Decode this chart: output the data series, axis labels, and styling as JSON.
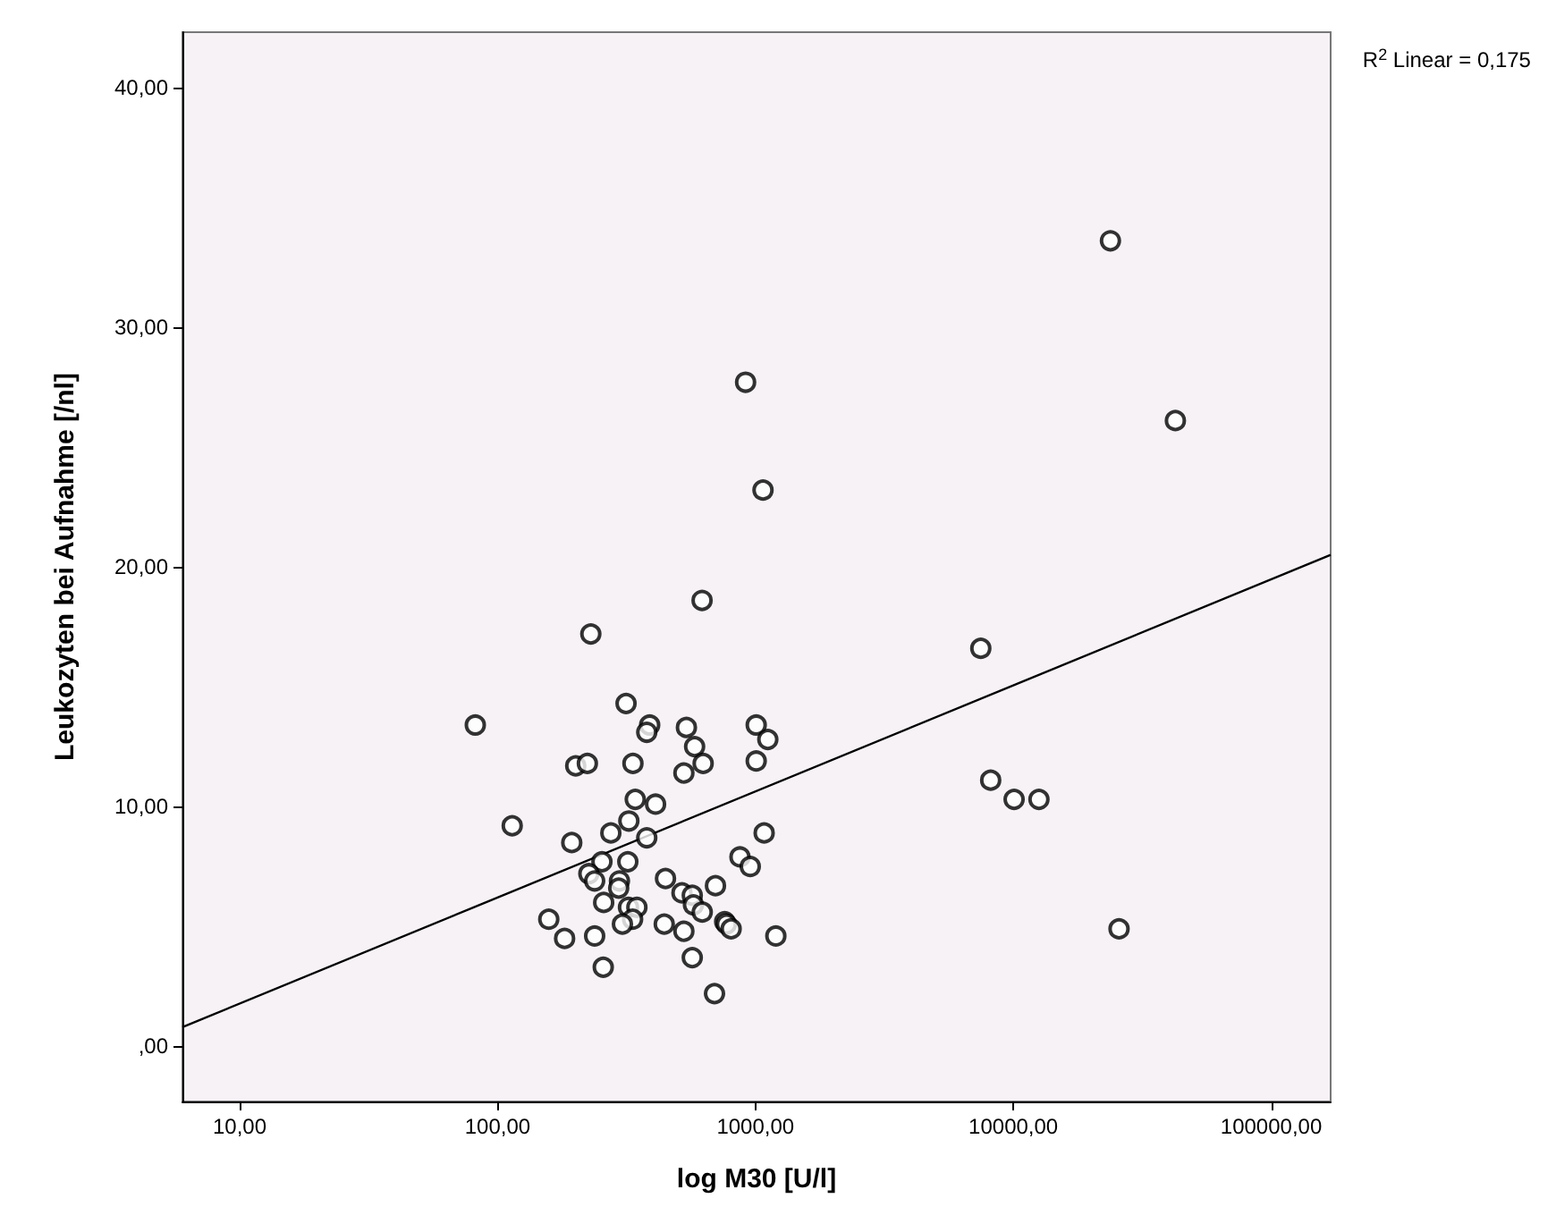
{
  "chart_data": {
    "type": "scatter",
    "xlabel": "log M30 [U/l]",
    "ylabel": "Leukozyten bei Aufnahme [/nl]",
    "annotations": [
      "R$^{2}$ Linear = 0,175"
    ],
    "log": "x",
    "grid": false,
    "marker": "circle",
    "xlim": [
      6,
      170000
    ],
    "ylim": [
      -2.3,
      42.3
    ],
    "xticks": [
      {
        "value": 10,
        "label": "10,00"
      },
      {
        "value": 100,
        "label": "100,00"
      },
      {
        "value": 1000,
        "label": "1000,00"
      },
      {
        "value": 10000,
        "label": "10000,00"
      },
      {
        "value": 100000,
        "label": "100000,00"
      }
    ],
    "yticks": [
      {
        "value": 0,
        "label": ",00"
      },
      {
        "value": 10,
        "label": "10,00"
      },
      {
        "value": 20,
        "label": "20,00"
      },
      {
        "value": 30,
        "label": "30,00"
      },
      {
        "value": 40,
        "label": "40,00"
      }
    ],
    "series": [
      {
        "color": "#000000",
        "x": [
          621,
          230,
          82,
          315,
          389,
          379,
          540,
          1007,
          1117,
          581,
          201,
          223,
          335,
          627,
          528,
          1007,
          342,
          410,
          114,
          323,
          275,
          194,
          379,
          1081,
          254,
          320,
          226,
          238,
          871,
          955,
          448,
          297,
          295,
          700,
          519,
          569,
          575,
          622,
          258,
          322,
          347,
          334,
          305,
          158,
          182,
          238,
          443,
          528,
          760,
          772,
          805,
          1200,
          257,
          569,
          694,
          916,
          1070,
          23800,
          42500,
          7480,
          8170,
          10070,
          12570,
          25700
        ],
        "values": [
          18.6,
          17.2,
          13.4,
          14.3,
          13.4,
          13.1,
          13.3,
          13.4,
          12.8,
          12.5,
          11.7,
          11.8,
          11.8,
          11.8,
          11.4,
          11.9,
          10.3,
          10.1,
          9.2,
          9.4,
          8.9,
          8.5,
          8.7,
          8.9,
          7.7,
          7.7,
          7.2,
          6.9,
          7.9,
          7.5,
          7.0,
          6.9,
          6.6,
          6.7,
          6.4,
          6.3,
          5.9,
          5.6,
          6.0,
          5.8,
          5.8,
          5.3,
          5.1,
          5.3,
          4.5,
          4.6,
          5.1,
          4.8,
          5.2,
          5.1,
          4.9,
          4.6,
          3.3,
          3.7,
          2.2,
          27.7,
          23.2,
          33.6,
          26.1,
          16.6,
          11.1,
          10.3,
          10.3,
          4.9
        ]
      },
      {
        "type": "line",
        "color": "#000000",
        "marker": "none",
        "line_style": "solid",
        "x": [
          6,
          170000
        ],
        "values": [
          0.8,
          20.5
        ]
      }
    ]
  }
}
